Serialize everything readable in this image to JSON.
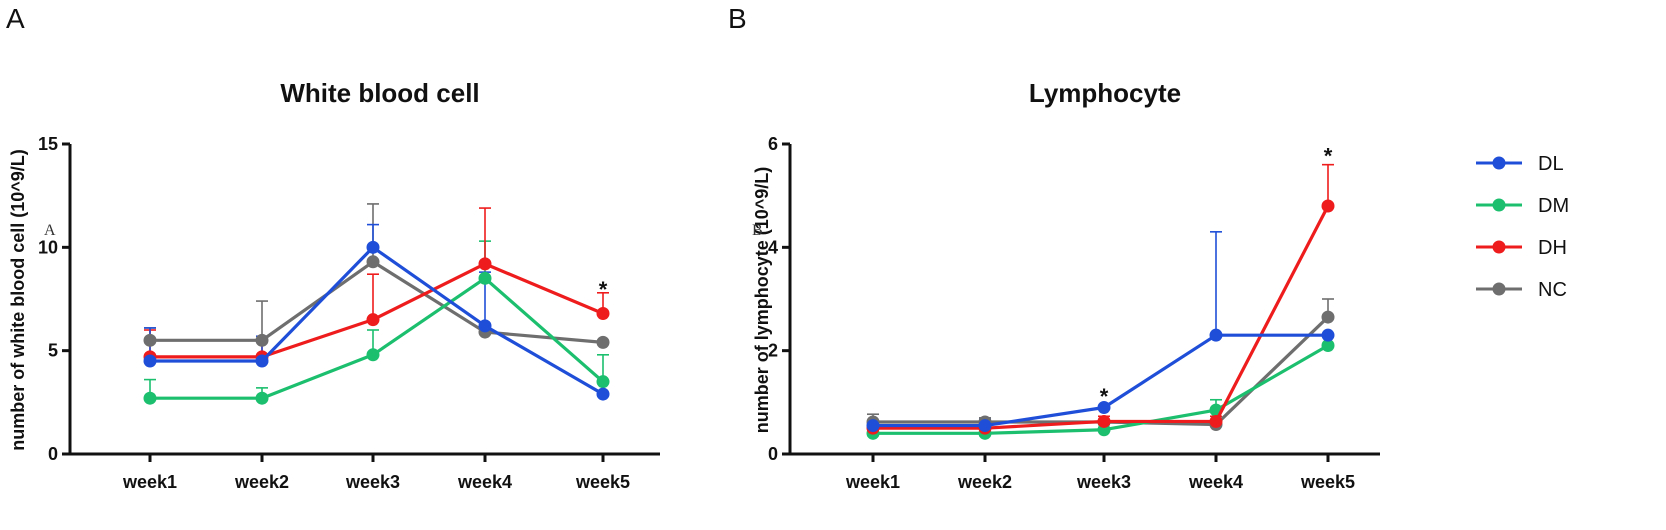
{
  "chart_data": [
    {
      "panel_label": "A",
      "type": "line",
      "title": "White blood cell",
      "xlabel": "",
      "ylabel": "number of white blood cell (10^9/L)",
      "categories": [
        "week1",
        "week2",
        "week3",
        "week4",
        "week5"
      ],
      "ylim": [
        0,
        15
      ],
      "yticks": [
        "0",
        "5",
        "10",
        "15"
      ],
      "series": [
        {
          "name": "DL",
          "values": [
            4.5,
            4.5,
            10.0,
            6.2,
            2.9
          ],
          "errors": [
            1.6,
            1.2,
            1.1,
            2.6,
            0.0
          ]
        },
        {
          "name": "DM",
          "values": [
            2.7,
            2.7,
            4.8,
            8.5,
            3.5
          ],
          "errors": [
            0.9,
            0.5,
            1.2,
            1.8,
            1.3
          ]
        },
        {
          "name": "DH",
          "values": [
            4.7,
            4.7,
            6.5,
            9.2,
            6.8
          ],
          "errors": [
            1.3,
            0.8,
            2.2,
            2.7,
            1.0
          ]
        },
        {
          "name": "NC",
          "values": [
            5.5,
            5.5,
            9.3,
            5.9,
            5.4
          ],
          "errors": [
            0.6,
            1.9,
            2.8,
            0.0,
            0.0
          ]
        }
      ],
      "annotations": [
        {
          "text": "*",
          "category": "week5",
          "y": 7.8
        }
      ],
      "stray_mark": "A"
    },
    {
      "panel_label": "B",
      "type": "line",
      "title": "Lymphocyte",
      "xlabel": "",
      "ylabel": "number of lymphocyte (10^9/L)",
      "categories": [
        "week1",
        "week2",
        "week3",
        "week4",
        "week5"
      ],
      "ylim": [
        0,
        6
      ],
      "yticks": [
        "0",
        "2",
        "4",
        "6"
      ],
      "series": [
        {
          "name": "DL",
          "values": [
            0.55,
            0.55,
            0.9,
            2.3,
            2.3
          ],
          "errors": [
            0.1,
            0.12,
            0.0,
            2.0,
            0.0
          ]
        },
        {
          "name": "DM",
          "values": [
            0.4,
            0.4,
            0.47,
            0.85,
            2.1
          ],
          "errors": [
            0.1,
            0.1,
            0.1,
            0.2,
            0.0
          ]
        },
        {
          "name": "DH",
          "values": [
            0.5,
            0.5,
            0.63,
            0.63,
            4.8
          ],
          "errors": [
            0.1,
            0.1,
            0.1,
            0.1,
            0.8
          ]
        },
        {
          "name": "NC",
          "values": [
            0.62,
            0.62,
            0.62,
            0.57,
            2.65
          ],
          "errors": [
            0.15,
            0.08,
            0.05,
            0.05,
            0.35
          ]
        }
      ],
      "annotations": [
        {
          "text": "*",
          "category": "week3",
          "y": 1.05
        },
        {
          "text": "*",
          "category": "week5",
          "y": 5.7
        }
      ],
      "stray_mark": "B"
    }
  ],
  "legend": {
    "items": [
      {
        "name": "DL",
        "color": "#1f4fd8"
      },
      {
        "name": "DM",
        "color": "#1bbf6e"
      },
      {
        "name": "DH",
        "color": "#ee1c1c"
      },
      {
        "name": "NC",
        "color": "#6e6e6e"
      }
    ]
  }
}
